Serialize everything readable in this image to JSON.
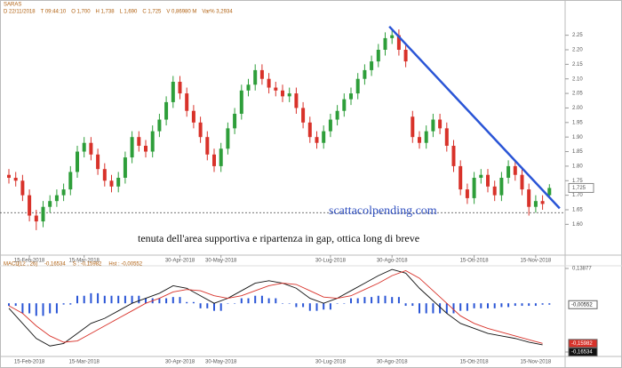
{
  "chart_data": [
    {
      "type": "candlestick",
      "symbol": "SARAS",
      "info": [
        "D 22/11/2018",
        "T 09:44:10",
        "O 1,700",
        "H 1,738",
        "L 1,690",
        "C 1,725",
        "V 0,86980 M",
        "Var% 3,2934"
      ],
      "open": [
        1.77,
        1.76,
        1.75,
        1.7,
        1.63,
        1.61,
        1.66,
        1.68,
        1.7,
        1.72,
        1.78,
        1.85,
        1.88,
        1.84,
        1.79,
        1.75,
        1.73,
        1.76,
        1.83,
        1.9,
        1.87,
        1.85,
        1.92,
        1.96,
        2.02,
        2.09,
        2.05,
        1.99,
        1.95,
        1.9,
        1.84,
        1.8,
        1.86,
        1.93,
        1.98,
        2.06,
        2.08,
        2.13,
        2.1,
        2.07,
        2.06,
        2.04,
        2.05,
        2.0,
        1.95,
        1.9,
        1.88,
        1.92,
        1.96,
        1.99,
        2.03,
        2.05,
        2.1,
        2.13,
        2.16,
        2.2,
        2.24,
        2.25,
        2.2,
        1.97,
        1.9,
        1.88,
        1.92,
        1.96,
        1.93,
        1.87,
        1.8,
        1.72,
        1.69,
        1.76,
        1.77,
        1.73,
        1.7,
        1.76,
        1.8,
        1.77,
        1.72,
        1.66,
        1.68,
        1.7
      ],
      "high": [
        1.79,
        1.78,
        1.77,
        1.72,
        1.65,
        1.68,
        1.7,
        1.72,
        1.74,
        1.8,
        1.87,
        1.9,
        1.9,
        1.86,
        1.81,
        1.77,
        1.78,
        1.85,
        1.92,
        1.92,
        1.89,
        1.94,
        1.98,
        2.04,
        2.11,
        2.11,
        2.07,
        2.01,
        1.97,
        1.92,
        1.86,
        1.88,
        1.95,
        2.0,
        2.08,
        2.1,
        2.15,
        2.15,
        2.12,
        2.09,
        2.08,
        2.07,
        2.07,
        2.02,
        1.97,
        1.92,
        1.94,
        1.98,
        2.01,
        2.05,
        2.07,
        2.12,
        2.15,
        2.18,
        2.22,
        2.26,
        2.27,
        2.27,
        2.22,
        1.99,
        1.92,
        1.94,
        1.98,
        1.98,
        1.95,
        1.89,
        1.82,
        1.74,
        1.78,
        1.79,
        1.79,
        1.75,
        1.78,
        1.82,
        1.82,
        1.79,
        1.74,
        1.7,
        1.7,
        1.738
      ],
      "low": [
        1.74,
        1.73,
        1.68,
        1.61,
        1.58,
        1.59,
        1.64,
        1.66,
        1.68,
        1.7,
        1.76,
        1.83,
        1.82,
        1.77,
        1.73,
        1.71,
        1.71,
        1.74,
        1.81,
        1.85,
        1.83,
        1.83,
        1.9,
        1.94,
        2.0,
        2.03,
        1.97,
        1.93,
        1.88,
        1.82,
        1.78,
        1.78,
        1.84,
        1.91,
        1.96,
        2.04,
        2.06,
        2.08,
        2.05,
        2.04,
        2.02,
        2.02,
        1.98,
        1.93,
        1.88,
        1.86,
        1.86,
        1.9,
        1.94,
        1.97,
        2.01,
        2.03,
        2.08,
        2.11,
        2.14,
        2.18,
        2.22,
        2.18,
        2.14,
        1.88,
        1.86,
        1.86,
        1.9,
        1.91,
        1.85,
        1.78,
        1.7,
        1.67,
        1.67,
        1.74,
        1.71,
        1.68,
        1.68,
        1.74,
        1.75,
        1.7,
        1.63,
        1.64,
        1.65,
        1.69
      ],
      "close": [
        1.76,
        1.75,
        1.7,
        1.63,
        1.61,
        1.66,
        1.68,
        1.7,
        1.72,
        1.78,
        1.85,
        1.88,
        1.84,
        1.79,
        1.75,
        1.73,
        1.76,
        1.83,
        1.9,
        1.87,
        1.85,
        1.92,
        1.96,
        2.02,
        2.09,
        2.05,
        1.99,
        1.95,
        1.9,
        1.84,
        1.8,
        1.86,
        1.93,
        1.98,
        2.06,
        2.08,
        2.13,
        2.1,
        2.07,
        2.06,
        2.04,
        2.05,
        2.0,
        1.95,
        1.9,
        1.88,
        1.92,
        1.96,
        1.99,
        2.03,
        2.05,
        2.1,
        2.13,
        2.16,
        2.2,
        2.24,
        2.25,
        2.2,
        2.16,
        1.9,
        1.88,
        1.92,
        1.96,
        1.93,
        1.87,
        1.8,
        1.72,
        1.69,
        1.76,
        1.77,
        1.73,
        1.7,
        1.76,
        1.8,
        1.77,
        1.72,
        1.66,
        1.68,
        1.67,
        1.725
      ],
      "up_color": "#2e9e3a",
      "down_color": "#d8322a",
      "ylim": [
        1.54,
        2.31
      ],
      "yticks": [
        {
          "value": 2.25,
          "label": "2.25"
        },
        {
          "value": 2.2,
          "label": "2.20"
        },
        {
          "value": 2.15,
          "label": "2.15"
        },
        {
          "value": 2.1,
          "label": "2.10"
        },
        {
          "value": 2.05,
          "label": "2.05"
        },
        {
          "value": 2.0,
          "label": "2.00"
        },
        {
          "value": 1.95,
          "label": "1.95"
        },
        {
          "value": 1.9,
          "label": "1.90"
        },
        {
          "value": 1.85,
          "label": "1.85"
        },
        {
          "value": 1.8,
          "label": "1.80"
        },
        {
          "value": 1.75,
          "label": "1.75"
        },
        {
          "value": 1.7,
          "label": "1.70"
        },
        {
          "value": 1.65,
          "label": "1.65"
        },
        {
          "value": 1.6,
          "label": "1.60"
        }
      ],
      "last_label": "1,725",
      "xticks": [
        {
          "value": 3,
          "label": "15-Feb-2018"
        },
        {
          "value": 11,
          "label": "15-Mar-2018"
        },
        {
          "value": 25,
          "label": "30-Apr-2018"
        },
        {
          "value": 31,
          "label": "30-May-2018"
        },
        {
          "value": 47,
          "label": "30-Lug-2018"
        },
        {
          "value": 56,
          "label": "30-Ago-2018"
        },
        {
          "value": 68,
          "label": "15-Ott-2018"
        },
        {
          "value": 77,
          "label": "15-Nov-2018"
        }
      ],
      "trendline": {
        "from": [
          55.6,
          2.28
        ],
        "to": [
          80.5,
          1.655
        ],
        "color": "#2a55d6"
      },
      "support": 1.64,
      "annotations": [
        "scattacolpending.com",
        "tenuta dell'area supportiva e ripartenza in gap, ottica long di breve"
      ]
    },
    {
      "type": "macd",
      "title": "MACD",
      "params": "(12 , 26)",
      "readouts": [
        "-0,16534",
        "S : -0,15982",
        "Hst : -0,00552"
      ],
      "ylim": [
        -0.19398,
        0.13877
      ],
      "yticks": [
        {
          "value": 0.13877,
          "label": "0,13877"
        },
        {
          "value": -0.19398,
          "label": "-0,19398"
        }
      ],
      "series": [
        {
          "color": "#111111",
          "last_label": "-0,16534",
          "values": [
            -0.02,
            -0.08,
            -0.14,
            -0.17,
            -0.16,
            -0.12,
            -0.08,
            -0.06,
            -0.03,
            0.0,
            0.02,
            0.04,
            0.07,
            0.06,
            0.03,
            0.0,
            0.02,
            0.05,
            0.08,
            0.09,
            0.08,
            0.06,
            0.02,
            0.0,
            0.02,
            0.05,
            0.08,
            0.11,
            0.135,
            0.12,
            0.06,
            0.01,
            -0.04,
            -0.08,
            -0.1,
            -0.12,
            -0.13,
            -0.14,
            -0.155,
            -0.16534
          ]
        },
        {
          "color": "#d8322a",
          "last_label": "-0,15982",
          "values": [
            -0.01,
            -0.04,
            -0.09,
            -0.13,
            -0.155,
            -0.15,
            -0.12,
            -0.09,
            -0.06,
            -0.03,
            0.0,
            0.02,
            0.045,
            0.055,
            0.05,
            0.03,
            0.02,
            0.03,
            0.05,
            0.07,
            0.08,
            0.075,
            0.05,
            0.025,
            0.02,
            0.03,
            0.055,
            0.08,
            0.11,
            0.13,
            0.1,
            0.05,
            0.0,
            -0.05,
            -0.08,
            -0.1,
            -0.115,
            -0.13,
            -0.145,
            -0.15982
          ]
        }
      ],
      "histogram": {
        "color": "#2a55d6",
        "last_label": "-0,00552",
        "values": [
          -0.01,
          -0.04,
          -0.05,
          -0.04,
          -0.005,
          0.03,
          0.04,
          0.03,
          0.03,
          0.03,
          0.02,
          0.02,
          0.025,
          0.005,
          -0.02,
          -0.03,
          0.0,
          0.02,
          0.03,
          0.02,
          0.0,
          -0.015,
          -0.03,
          -0.025,
          0.0,
          0.02,
          0.025,
          0.03,
          0.025,
          -0.01,
          -0.04,
          -0.04,
          -0.04,
          -0.03,
          -0.02,
          -0.02,
          -0.015,
          -0.01,
          -0.01,
          -0.00552
        ]
      }
    }
  ]
}
